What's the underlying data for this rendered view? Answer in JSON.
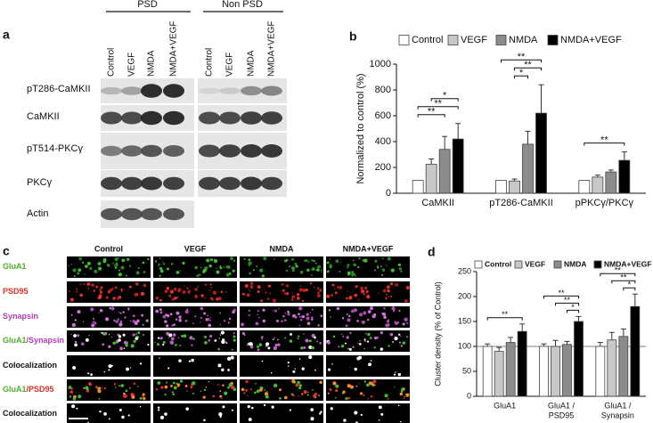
{
  "panel_labels": [
    "a",
    "b",
    "c",
    "d"
  ],
  "blot": {
    "groups": [
      "PSD",
      "Non PSD"
    ],
    "lanes": [
      "Control",
      "VEGF",
      "NMDA",
      "NMDA+VEGF"
    ],
    "rows": [
      "pT286-CaMKII",
      "CaMKII",
      "pT514-PKCγ",
      "PKCγ",
      "Actin"
    ]
  },
  "micrographs": {
    "columns": [
      "Control",
      "VEGF",
      "NMDA",
      "NMDA+VEGF"
    ],
    "rows": [
      {
        "parts": [
          {
            "text": "GluA1",
            "color": "#4caf2a"
          }
        ]
      },
      {
        "parts": [
          {
            "text": "PSD95",
            "color": "#e0302a"
          }
        ]
      },
      {
        "parts": [
          {
            "text": "Synapsin",
            "color": "#b13bb8"
          }
        ]
      },
      {
        "parts": [
          {
            "text": "GluA1",
            "color": "#4caf2a"
          },
          {
            "text": "/Synapsin",
            "color": "#b13bb8"
          }
        ]
      },
      {
        "parts": [
          {
            "text": "Colocalization",
            "color": "#111111"
          }
        ]
      },
      {
        "parts": [
          {
            "text": "GluA1",
            "color": "#4caf2a"
          },
          {
            "text": "/PSD95",
            "color": "#e0302a"
          }
        ]
      },
      {
        "parts": [
          {
            "text": "Colocalization",
            "color": "#111111"
          }
        ]
      }
    ]
  },
  "chart_data": [
    {
      "type": "bar",
      "ylabel": "Normalized to control (%)",
      "categories": [
        "CaMKII",
        "pT286-CaMKII",
        "pPKCγ/PKCγ"
      ],
      "series": [
        {
          "name": "Control",
          "color": "#ffffff",
          "values": [
            100,
            100,
            100
          ],
          "errors": [
            null,
            null,
            null
          ]
        },
        {
          "name": "VEGF",
          "color": "#c8c8c8",
          "values": [
            225,
            95,
            125
          ],
          "errors": [
            40,
            15,
            15
          ]
        },
        {
          "name": "NMDA",
          "color": "#8c8c8c",
          "values": [
            340,
            380,
            165
          ],
          "errors": [
            100,
            100,
            15
          ]
        },
        {
          "name": "NMDA+VEGF",
          "color": "#000000",
          "values": [
            420,
            620,
            255
          ],
          "errors": [
            120,
            220,
            65
          ]
        }
      ],
      "ylim": [
        0,
        1000
      ],
      "yticks": [
        0,
        200,
        400,
        600,
        800,
        1000
      ],
      "significance": [
        {
          "category": 0,
          "from": 0,
          "to": 2,
          "label": "**"
        },
        {
          "category": 0,
          "from": 0,
          "to": 3,
          "label": "**"
        },
        {
          "category": 0,
          "from": 1,
          "to": 3,
          "label": "*"
        },
        {
          "category": 1,
          "from": 1,
          "to": 2,
          "label": "*"
        },
        {
          "category": 1,
          "from": 1,
          "to": 3,
          "label": "**"
        },
        {
          "category": 1,
          "from": 0,
          "to": 3,
          "label": "**"
        },
        {
          "category": 2,
          "from": 0,
          "to": 3,
          "label": "**"
        }
      ]
    },
    {
      "type": "bar",
      "ylabel": "Cluster density (% of Control)",
      "categories": [
        [
          "GluA1"
        ],
        [
          "GluA1 /",
          "PSD95"
        ],
        [
          "GluA1 /",
          "Synapsin"
        ]
      ],
      "series": [
        {
          "name": "Control",
          "color": "#ffffff",
          "values": [
            100,
            100,
            100
          ],
          "errors": [
            5,
            5,
            8
          ]
        },
        {
          "name": "VEGF",
          "color": "#c8c8c8",
          "values": [
            90,
            100,
            113
          ],
          "errors": [
            8,
            12,
            15
          ]
        },
        {
          "name": "NMDA",
          "color": "#8c8c8c",
          "values": [
            108,
            104,
            120
          ],
          "errors": [
            10,
            6,
            15
          ]
        },
        {
          "name": "NMDA+VEGF",
          "color": "#000000",
          "values": [
            130,
            150,
            180
          ],
          "errors": [
            15,
            10,
            25
          ]
        }
      ],
      "ylim": [
        0,
        250
      ],
      "yticks": [
        0,
        50,
        100,
        150,
        200,
        250
      ],
      "hline": 100,
      "significance": [
        {
          "category": 0,
          "from": 0,
          "to": 3,
          "label": "**"
        },
        {
          "category": 1,
          "from": 2,
          "to": 3,
          "label": "*"
        },
        {
          "category": 1,
          "from": 1,
          "to": 3,
          "label": "**"
        },
        {
          "category": 1,
          "from": 0,
          "to": 3,
          "label": "**"
        },
        {
          "category": 2,
          "from": 2,
          "to": 3,
          "label": "*"
        },
        {
          "category": 2,
          "from": 1,
          "to": 3,
          "label": "**"
        },
        {
          "category": 2,
          "from": 0,
          "to": 3,
          "label": "**"
        }
      ]
    }
  ]
}
